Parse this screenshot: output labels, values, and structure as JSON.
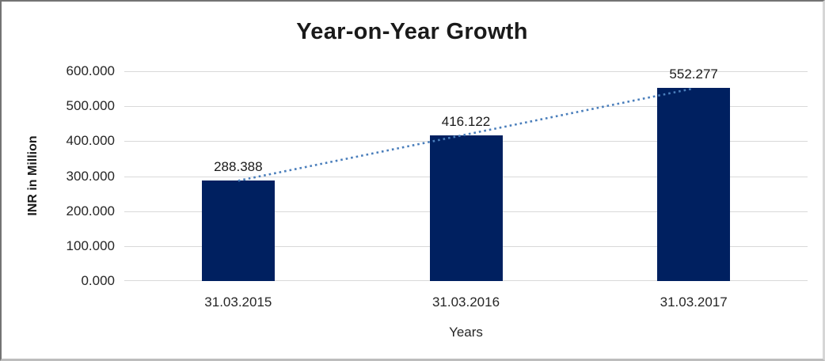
{
  "chart_data": {
    "type": "bar",
    "title": "Year-on-Year Growth",
    "xlabel": "Years",
    "ylabel": "INR in Million",
    "categories": [
      "31.03.2015",
      "31.03.2016",
      "31.03.2017"
    ],
    "series": [
      {
        "name": "INR in Million",
        "values": [
          288.388,
          416.122,
          552.277
        ],
        "data_labels": [
          "288.388",
          "416.122",
          "552.277"
        ]
      }
    ],
    "ylim": [
      0,
      600
    ],
    "ytick_step": 100,
    "ytick_labels": [
      "0.000",
      "100.000",
      "200.000",
      "300.000",
      "400.000",
      "500.000",
      "600.000"
    ],
    "grid": true,
    "legend_position": "none",
    "trendline": {
      "type": "linear",
      "line_style": "dotted",
      "color": "#4a7ebb"
    },
    "colors": {
      "bar": "#002060",
      "gridline": "#d9d9d9",
      "title_text": "#1a1a1a",
      "tick_text": "#262626",
      "background": "#ffffff"
    }
  }
}
